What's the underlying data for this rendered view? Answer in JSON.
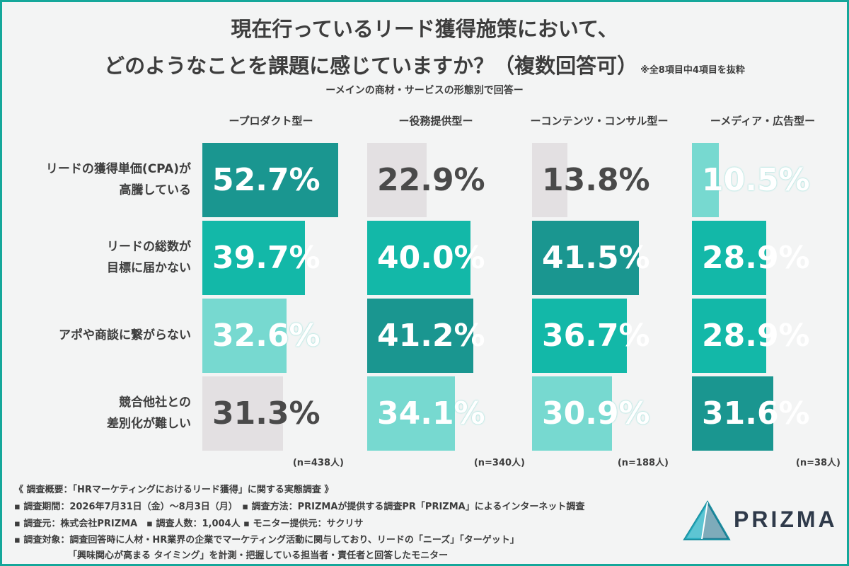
{
  "title_line1": "現在行っているリード獲得施策において、",
  "title_line2": "どのようなことを課題に感じていますか？（複数回答可）",
  "title_note": "※全8項目中4項目を抜粋",
  "subtitle": "ーメインの商材・サービスの形態別で回答ー",
  "colors": {
    "dark": "#1a9690",
    "mid": "#13b8a8",
    "light": "#77d9d0",
    "grey": "#e3e0e2",
    "frame": "#14a79a"
  },
  "chart_data": {
    "type": "bar",
    "orientation": "horizontal",
    "xlim": [
      0,
      100
    ],
    "categories": [
      "リードの獲得単価(CPA)が高騰している",
      "リードの総数が目標に届かない",
      "アポや商談に繋がらない",
      "競合他社との差別化が難しい"
    ],
    "category_labels": [
      [
        "リードの獲得単価(CPA)が",
        "高騰している"
      ],
      [
        "リードの総数が",
        "目標に届かない"
      ],
      [
        "アポや商談に繋がらない"
      ],
      [
        "競合他社との",
        "差別化が難しい"
      ]
    ],
    "series": [
      {
        "name": "ープロダクト型ー",
        "n": "(n=438人)",
        "values": [
          52.7,
          39.7,
          32.6,
          31.3
        ],
        "labels": [
          "52.7%",
          "39.7%",
          "32.6%",
          "31.3%"
        ],
        "shades": [
          "dark",
          "mid",
          "light",
          "grey"
        ]
      },
      {
        "name": "ー役務提供型ー",
        "n": "(n=340人)",
        "values": [
          22.9,
          40.0,
          41.2,
          34.1
        ],
        "labels": [
          "22.9%",
          "40.0%",
          "41.2%",
          "34.1%"
        ],
        "shades": [
          "grey",
          "mid",
          "dark",
          "light"
        ]
      },
      {
        "name": "ーコンテンツ・コンサル型ー",
        "n": "(n=188人)",
        "values": [
          13.8,
          41.5,
          36.7,
          30.9
        ],
        "labels": [
          "13.8%",
          "41.5%",
          "36.7%",
          "30.9%"
        ],
        "shades": [
          "grey",
          "dark",
          "mid",
          "light"
        ]
      },
      {
        "name": "ーメディア・広告型ー",
        "n": "(n=38人)",
        "values": [
          10.5,
          28.9,
          28.9,
          31.6
        ],
        "labels": [
          "10.5%",
          "28.9%",
          "28.9%",
          "31.6%"
        ],
        "shades": [
          "light",
          "mid",
          "mid",
          "dark"
        ]
      }
    ]
  },
  "footer": {
    "line1": "《 調査概要：「HRマーケティングにおけるリード獲得」に関する実態調査 》",
    "line2": "▪ 調査期間：2026年7月31日（金）〜8月3日（月）　▪ 調査方法：PRIZMAが提供する調査PR「PRIZMA」によるインターネット調査",
    "line3": "▪ 調査元：株式会社PRIZMA　▪ 調査人数：1,004人 ▪ モニター提供元：サクリサ",
    "line4": "▪ 調査対象：調査回答時に人材・HR業界の企業でマーケティング活動に関与しており、リードの「ニーズ」「ターゲット」",
    "line5": "「興味関心が高まる タイミング」を計測・把握している担当者・責任者と回答したモニター"
  },
  "logo": {
    "text": "PRIZMA",
    "icon": "prizma-triangle-logo"
  }
}
